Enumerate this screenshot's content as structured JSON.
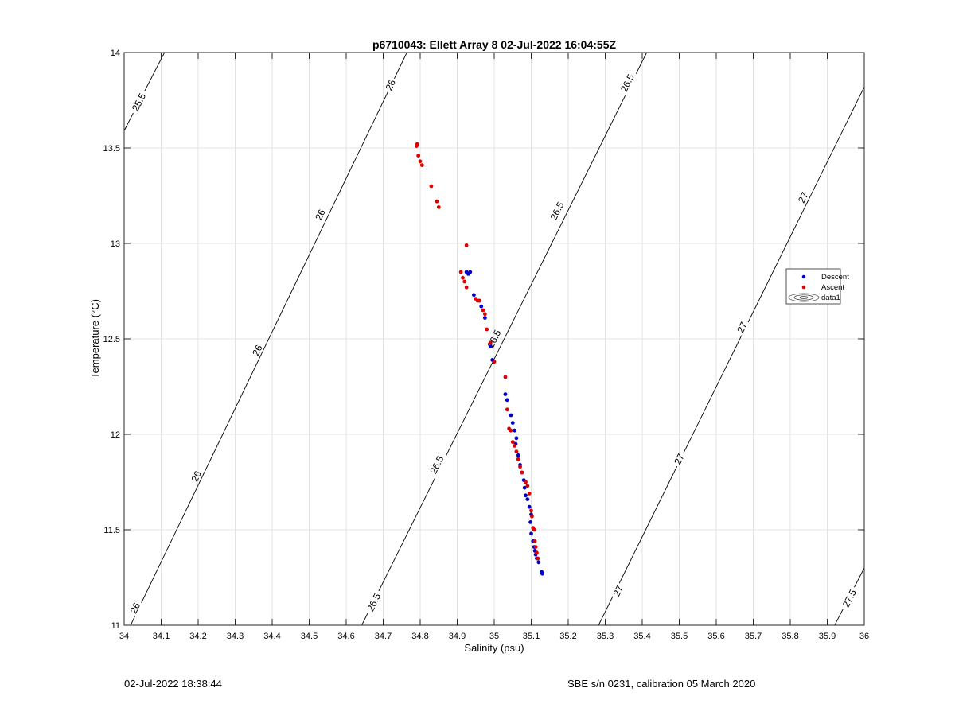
{
  "chart_data": {
    "type": "scatter",
    "title": "p6710043: Ellett Array 8 02-Jul-2022 16:04:55Z",
    "xlabel": "Salinity (psu)",
    "ylabel": "Temperature (°C)",
    "xlim": [
      34,
      36
    ],
    "ylim": [
      11,
      14
    ],
    "xticks": [
      34,
      34.1,
      34.2,
      34.3,
      34.4,
      34.5,
      34.6,
      34.7,
      34.8,
      34.9,
      35,
      35.1,
      35.2,
      35.3,
      35.4,
      35.5,
      35.6,
      35.7,
      35.8,
      35.9,
      36
    ],
    "xtick_labels": [
      "34",
      "34.1",
      "34.2",
      "34.3",
      "34.4",
      "34.5",
      "34.6",
      "34.7",
      "34.8",
      "34.9",
      "35",
      "35.1",
      "35.2",
      "35.3",
      "35.4",
      "35.5",
      "35.6",
      "35.7",
      "35.8",
      "35.9",
      "36"
    ],
    "yticks": [
      11,
      11.5,
      12,
      12.5,
      13,
      13.5,
      14
    ],
    "ytick_labels": [
      "11",
      "11.5",
      "12",
      "12.5",
      "13",
      "13.5",
      "14"
    ],
    "grid": true,
    "legend": {
      "position": "right",
      "entries": [
        "Descent",
        "Ascent",
        "data1"
      ]
    },
    "colors": {
      "descent": "#0000cc",
      "ascent": "#dd0000",
      "contour": "#000000",
      "grid": "#e3e3e3"
    },
    "contours": [
      {
        "level": "25.5",
        "from": [
          34,
          13.59
        ],
        "to": [
          34.109,
          14.0
        ],
        "labels": [
          {
            "text": "25.5",
            "at": [
              34.04,
              13.74
            ]
          }
        ]
      },
      {
        "level": "26",
        "from": [
          34.0,
          10.93
        ],
        "to": [
          34.764,
          14.0
        ],
        "labels": [
          {
            "text": "26",
            "at": [
              34.03,
              11.09
            ]
          },
          {
            "text": "26",
            "at": [
              34.195,
              11.78
            ]
          },
          {
            "text": "26",
            "at": [
              34.36,
              12.44
            ]
          },
          {
            "text": "26",
            "at": [
              34.53,
              13.15
            ]
          },
          {
            "text": "26",
            "at": [
              34.72,
              13.83
            ]
          }
        ]
      },
      {
        "level": "26.5",
        "from": [
          34.642,
          11.0
        ],
        "to": [
          35.412,
          14.0
        ],
        "labels": [
          {
            "text": "26.5",
            "at": [
              34.675,
              11.12
            ]
          },
          {
            "text": "26.5",
            "at": [
              34.845,
              11.84
            ]
          },
          {
            "text": "26.5",
            "at": [
              35.0,
              12.5
            ]
          },
          {
            "text": "26.5",
            "at": [
              35.17,
              13.17
            ]
          },
          {
            "text": "26.5",
            "at": [
              35.36,
              13.84
            ]
          }
        ]
      },
      {
        "level": "27",
        "from": [
          35.282,
          11.0
        ],
        "to": [
          36.0,
          13.82
        ],
        "labels": [
          {
            "text": "27",
            "at": [
              35.335,
              11.18
            ]
          },
          {
            "text": "27",
            "at": [
              35.5,
              11.87
            ]
          },
          {
            "text": "27",
            "at": [
              35.67,
              12.56
            ]
          },
          {
            "text": "27",
            "at": [
              35.835,
              13.24
            ]
          }
        ]
      },
      {
        "level": "27.5",
        "from": [
          35.92,
          11.0
        ],
        "to": [
          36.0,
          11.3
        ],
        "labels": [
          {
            "text": "27.5",
            "at": [
              35.96,
              11.14
            ]
          }
        ]
      }
    ],
    "series": [
      {
        "name": "Descent",
        "marker": "dot",
        "x": [
          34.925,
          34.935,
          34.93,
          34.945,
          34.96,
          34.965,
          34.975,
          34.99,
          34.995,
          35.03,
          35.035,
          35.045,
          35.05,
          35.055,
          35.06,
          35.058,
          35.065,
          35.07,
          35.075,
          35.08,
          35.082,
          35.085,
          35.09,
          35.095,
          35.1,
          35.098,
          35.1,
          35.105,
          35.108,
          35.11,
          35.112,
          35.115,
          35.12,
          35.128,
          35.13
        ],
        "y": [
          12.85,
          12.85,
          12.84,
          12.73,
          12.7,
          12.67,
          12.61,
          12.46,
          12.39,
          12.21,
          12.18,
          12.1,
          12.06,
          12.02,
          11.98,
          11.95,
          11.89,
          11.84,
          11.8,
          11.76,
          11.72,
          11.68,
          11.66,
          11.62,
          11.58,
          11.54,
          11.48,
          11.44,
          11.41,
          11.39,
          11.37,
          11.35,
          11.33,
          11.28,
          11.27
        ]
      },
      {
        "name": "Ascent",
        "marker": "dot",
        "x": [
          34.79,
          34.792,
          34.795,
          34.8,
          34.805,
          34.83,
          34.845,
          34.85,
          34.925,
          34.91,
          34.915,
          34.92,
          34.925,
          34.95,
          34.955,
          34.96,
          34.97,
          34.975,
          34.98,
          34.99,
          35.0,
          35.03,
          35.035,
          35.04,
          35.045,
          35.05,
          35.055,
          35.06,
          35.065,
          35.07,
          35.075,
          35.085,
          35.09,
          35.095,
          35.1,
          35.102,
          35.105,
          35.108,
          35.11,
          35.112,
          35.115,
          35.118
        ],
        "y": [
          13.51,
          13.52,
          13.46,
          13.43,
          13.41,
          13.3,
          13.22,
          13.19,
          12.99,
          12.85,
          12.82,
          12.8,
          12.77,
          12.71,
          12.7,
          12.7,
          12.65,
          12.63,
          12.55,
          12.48,
          12.38,
          12.3,
          12.13,
          12.03,
          12.02,
          11.96,
          11.94,
          11.91,
          11.87,
          11.83,
          11.8,
          11.75,
          11.73,
          11.69,
          11.6,
          11.57,
          11.51,
          11.5,
          11.44,
          11.41,
          11.38,
          11.35
        ]
      }
    ]
  },
  "footer": {
    "left": "02-Jul-2022 18:38:44",
    "right": "SBE s/n 0231, calibration 05 March 2020"
  }
}
